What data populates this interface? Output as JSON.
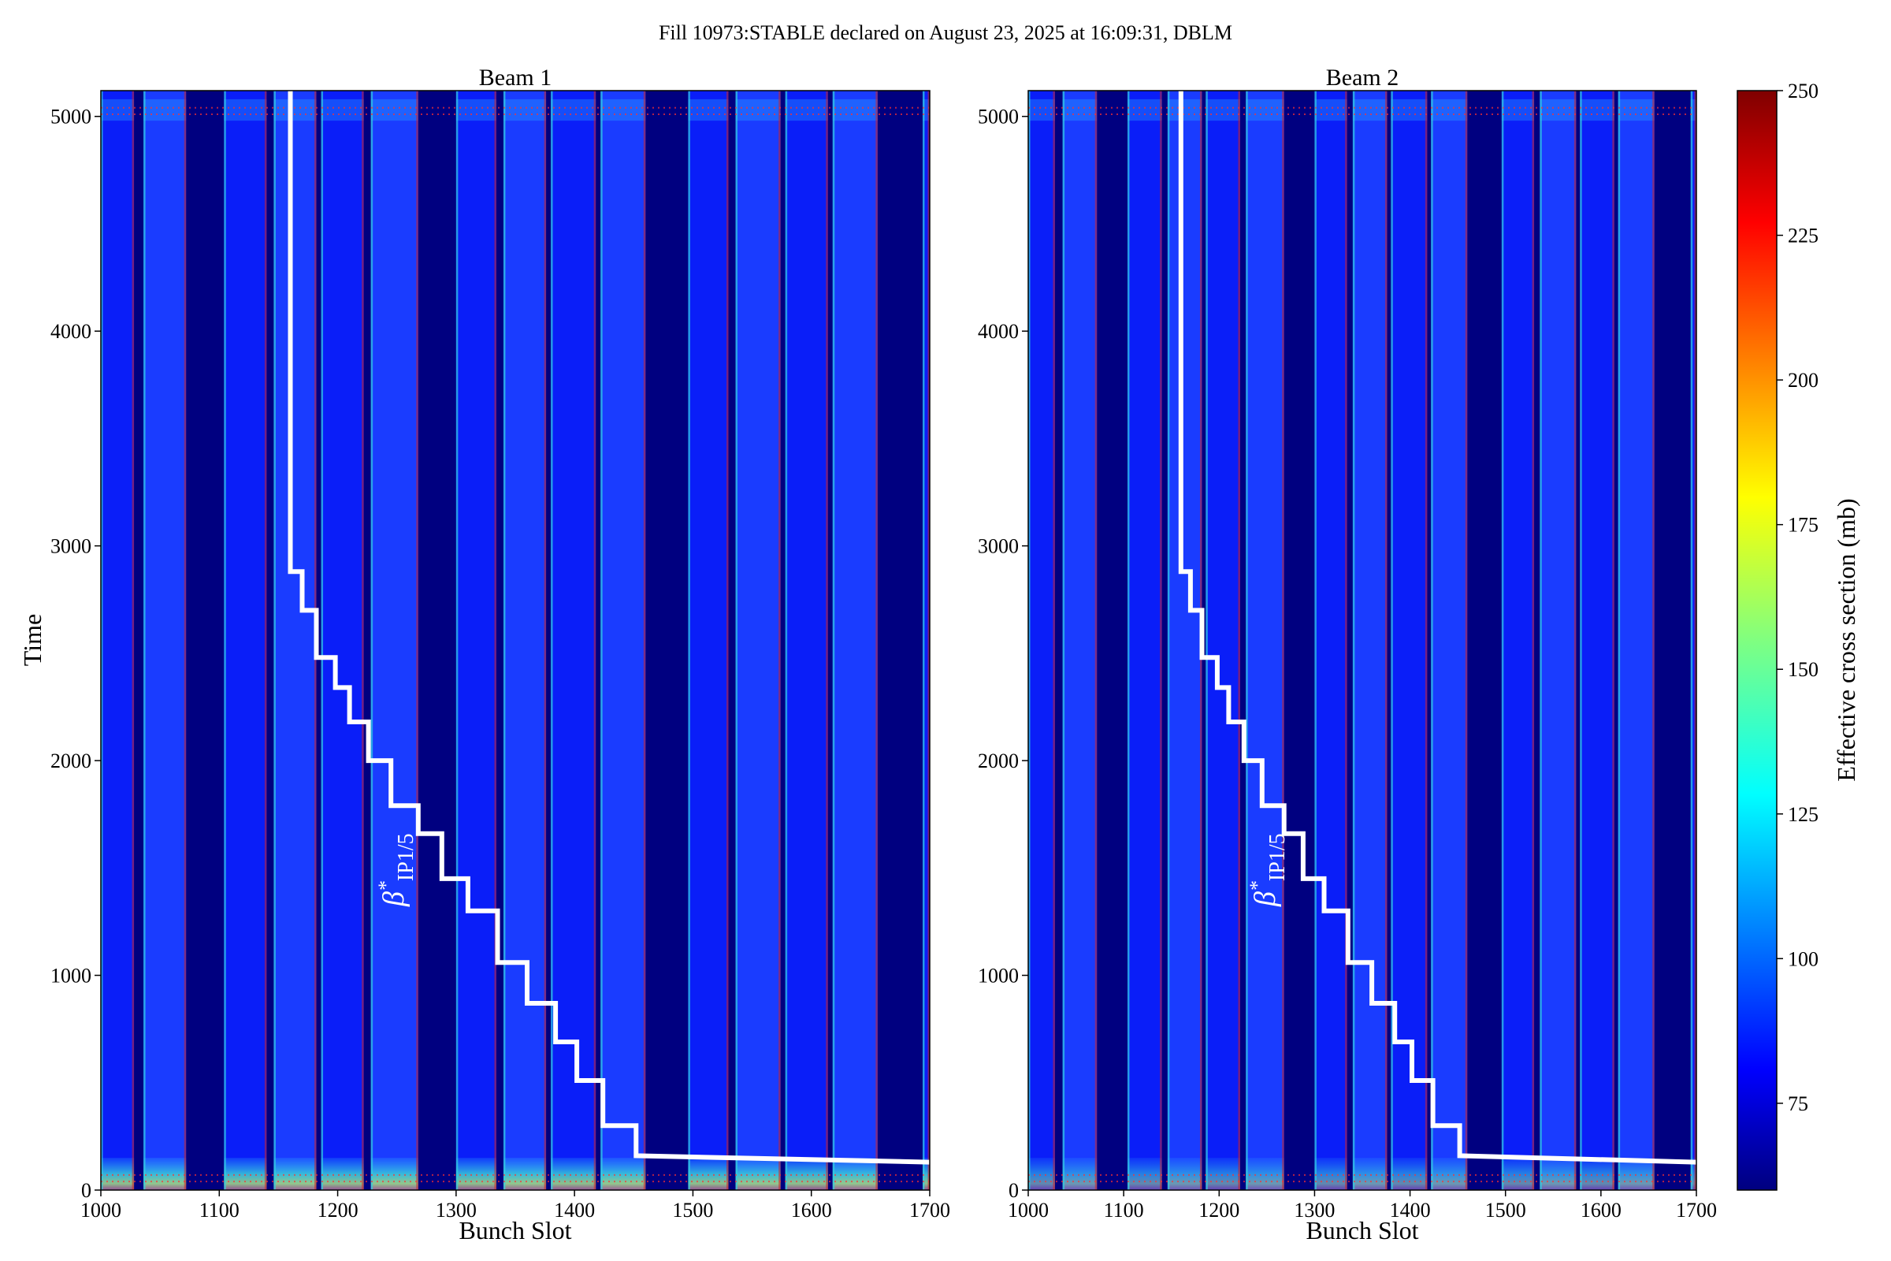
{
  "figure_title": "Fill 10973:STABLE declared on August 23, 2025 at 16:09:31, DBLM",
  "colorbar": {
    "label": "Effective cross section (mb)",
    "min": 60,
    "max": 250,
    "ticks": [
      75,
      100,
      125,
      150,
      175,
      200,
      225,
      250
    ]
  },
  "beta_label": {
    "base": "β",
    "sup": "*",
    "sub": "IP1/5"
  },
  "colors": {
    "background_low": "#000080",
    "band_main": "#0a1ef8",
    "band_mid": "#1a3cff",
    "step_line": "#ffffff"
  },
  "chart_data": [
    {
      "type": "heatmap",
      "title": "Beam 1",
      "xlabel": "Bunch Slot",
      "ylabel": "Time",
      "xlim": [
        1000,
        1700
      ],
      "ylim": [
        0,
        5120
      ],
      "xticks": [
        1000,
        1100,
        1200,
        1300,
        1400,
        1500,
        1600,
        1700
      ],
      "yticks": [
        0,
        1000,
        2000,
        3000,
        4000,
        5000
      ],
      "filled_bands": [
        [
          1000,
          1028
        ],
        [
          1036,
          1072
        ],
        [
          1104,
          1140
        ],
        [
          1146,
          1182
        ],
        [
          1186,
          1222
        ],
        [
          1228,
          1268
        ],
        [
          1300,
          1334
        ],
        [
          1340,
          1376
        ],
        [
          1380,
          1418
        ],
        [
          1422,
          1460
        ],
        [
          1496,
          1530
        ],
        [
          1536,
          1574
        ],
        [
          1578,
          1614
        ],
        [
          1618,
          1656
        ],
        [
          1694,
          1700
        ]
      ],
      "beta_star_steps": {
        "x": [
          1160,
          1160,
          1170,
          1170,
          1182,
          1182,
          1198,
          1198,
          1210,
          1210,
          1226,
          1226,
          1245,
          1245,
          1268,
          1268,
          1288,
          1288,
          1310,
          1310,
          1335,
          1335,
          1360,
          1360,
          1384,
          1384,
          1402,
          1402,
          1424,
          1424,
          1452,
          1452,
          1700
        ],
        "y": [
          5120,
          2880,
          2880,
          2700,
          2700,
          2480,
          2480,
          2340,
          2340,
          2180,
          2180,
          2000,
          2000,
          1790,
          1790,
          1660,
          1660,
          1450,
          1450,
          1300,
          1300,
          1060,
          1060,
          870,
          870,
          690,
          690,
          510,
          510,
          300,
          300,
          160,
          130
        ]
      }
    },
    {
      "type": "heatmap",
      "title": "Beam 2",
      "xlabel": "Bunch Slot",
      "ylabel": "",
      "xlim": [
        1000,
        1700
      ],
      "ylim": [
        0,
        5120
      ],
      "xticks": [
        1000,
        1100,
        1200,
        1300,
        1400,
        1500,
        1600,
        1700
      ],
      "yticks": [
        0,
        1000,
        2000,
        3000,
        4000,
        5000
      ],
      "filled_bands": [
        [
          1000,
          1028
        ],
        [
          1036,
          1072
        ],
        [
          1104,
          1140
        ],
        [
          1146,
          1182
        ],
        [
          1186,
          1222
        ],
        [
          1228,
          1268
        ],
        [
          1300,
          1334
        ],
        [
          1340,
          1376
        ],
        [
          1380,
          1418
        ],
        [
          1422,
          1460
        ],
        [
          1496,
          1530
        ],
        [
          1536,
          1574
        ],
        [
          1578,
          1614
        ],
        [
          1618,
          1656
        ],
        [
          1694,
          1700
        ]
      ],
      "beta_star_steps": {
        "x": [
          1160,
          1160,
          1170,
          1170,
          1182,
          1182,
          1198,
          1198,
          1210,
          1210,
          1226,
          1226,
          1245,
          1245,
          1268,
          1268,
          1288,
          1288,
          1310,
          1310,
          1335,
          1335,
          1360,
          1360,
          1384,
          1384,
          1402,
          1402,
          1424,
          1424,
          1452,
          1452,
          1700
        ],
        "y": [
          5120,
          2880,
          2880,
          2700,
          2700,
          2480,
          2480,
          2340,
          2340,
          2180,
          2180,
          2000,
          2000,
          1790,
          1790,
          1660,
          1660,
          1450,
          1450,
          1300,
          1300,
          1060,
          1060,
          870,
          870,
          690,
          690,
          510,
          510,
          300,
          300,
          160,
          130
        ]
      }
    }
  ]
}
